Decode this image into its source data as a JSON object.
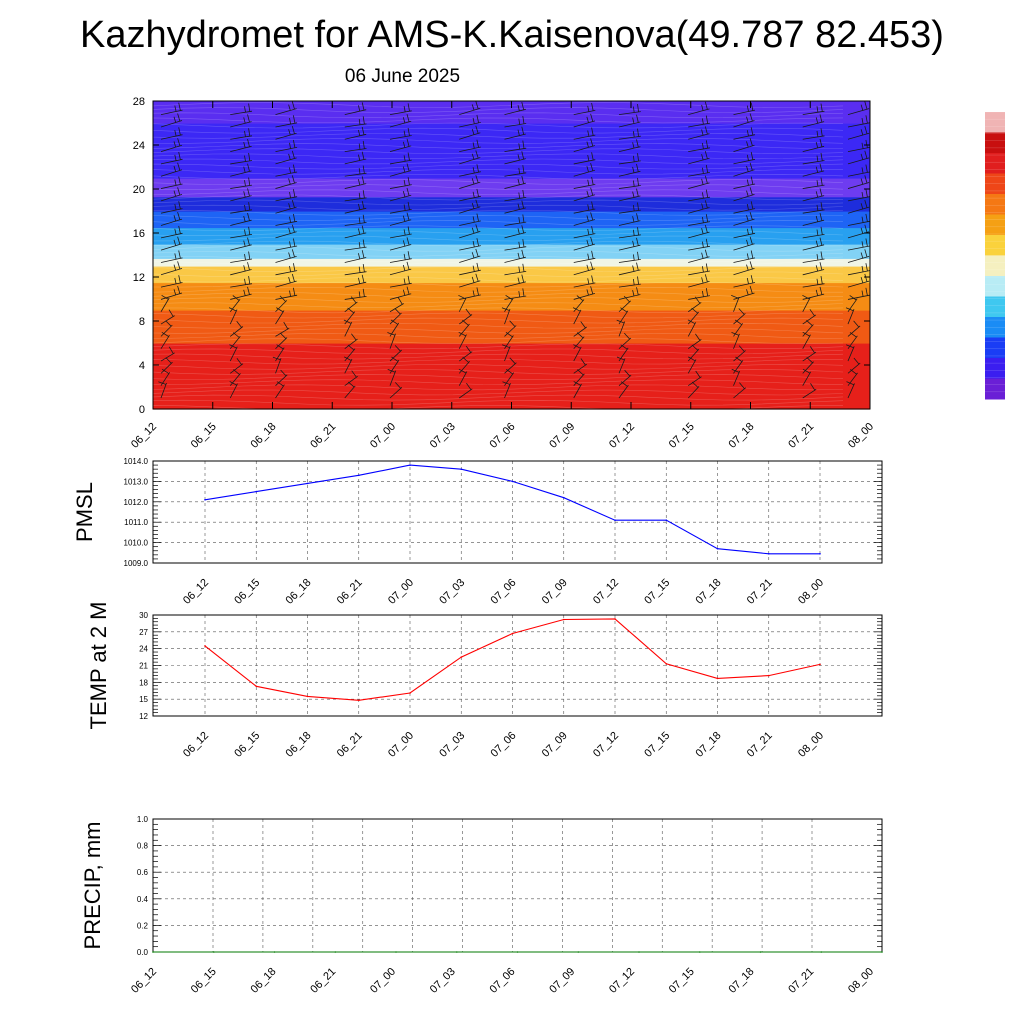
{
  "page": {
    "title": "Kazhydromet for AMS-K.Kaisenova(49.787 82.453)",
    "subtitle": "06 June 2025"
  },
  "chart_data": [
    {
      "type": "heatmap",
      "name": "vertical-cross-section",
      "x_tick_labels": [
        "06_12",
        "06_15",
        "06_18",
        "06_21",
        "07_00",
        "07_03",
        "07_06",
        "07_09",
        "07_12",
        "07_15",
        "07_18",
        "07_21",
        "08_00"
      ],
      "y_tick_labels": [
        "0",
        "4",
        "8",
        "12",
        "16",
        "20",
        "24",
        "28"
      ],
      "ylim": [
        0,
        28
      ],
      "colormap": [
        "#6a1fd6",
        "#3b1ef0",
        "#1a3df5",
        "#1a8cf5",
        "#3fc8f0",
        "#b8ecf5",
        "#f5f0c0",
        "#fad23c",
        "#f5a014",
        "#f57814",
        "#ee4618",
        "#e01e1e",
        "#c80f0f"
      ],
      "colorbar_top_color": "#f0b4b4",
      "bands": [
        {
          "from": 0,
          "to": 6,
          "color": "#e6201a"
        },
        {
          "from": 6,
          "to": 9,
          "color": "#f05a14"
        },
        {
          "from": 9,
          "to": 11.5,
          "color": "#f58c14"
        },
        {
          "from": 11.5,
          "to": 13,
          "color": "#fac846"
        },
        {
          "from": 13,
          "to": 13.7,
          "color": "#f0f5e6"
        },
        {
          "from": 13.7,
          "to": 15,
          "color": "#82d2f5"
        },
        {
          "from": 15,
          "to": 16.5,
          "color": "#28a0f0"
        },
        {
          "from": 16.5,
          "to": 18,
          "color": "#1e64f5"
        },
        {
          "from": 18,
          "to": 19.3,
          "color": "#1e2ddc"
        },
        {
          "from": 19.3,
          "to": 21,
          "color": "#6e3cf0"
        },
        {
          "from": 21,
          "to": 26,
          "color": "#3c28f5"
        },
        {
          "from": 26,
          "to": 28,
          "color": "#5a2ef0"
        }
      ]
    },
    {
      "type": "line",
      "name": "pmsl",
      "ylabel": "PMSL",
      "x": [
        "06_12",
        "06_15",
        "06_18",
        "06_21",
        "07_00",
        "07_03",
        "07_06",
        "07_09",
        "07_12",
        "07_15",
        "07_18",
        "07_21",
        "08_00"
      ],
      "values": [
        1012.1,
        1012.5,
        1012.9,
        1013.3,
        1013.8,
        1013.6,
        1013.0,
        1012.2,
        1011.1,
        1011.1,
        1009.7,
        1009.45,
        1009.45
      ],
      "ylim": [
        1009.0,
        1014.0
      ],
      "y_ticks": [
        "1009.0",
        "1010.0",
        "1011.0",
        "1012.0",
        "1013.0",
        "1014.0"
      ],
      "color": "#0000ff",
      "grid": true
    },
    {
      "type": "line",
      "name": "temp2m",
      "ylabel": "TEMP at 2 M",
      "x": [
        "06_12",
        "06_15",
        "06_18",
        "06_21",
        "07_00",
        "07_03",
        "07_06",
        "07_09",
        "07_12",
        "07_15",
        "07_18",
        "07_21",
        "08_00"
      ],
      "values": [
        24.5,
        17.3,
        15.5,
        14.8,
        16.1,
        22.5,
        26.7,
        29.2,
        29.3,
        21.3,
        18.7,
        19.2,
        21.2
      ],
      "ylim": [
        12,
        30
      ],
      "y_ticks": [
        "12",
        "15",
        "18",
        "21",
        "24",
        "27",
        "30"
      ],
      "color": "#ff0000",
      "grid": true
    },
    {
      "type": "line",
      "name": "precip",
      "ylabel": "PRECIP, mm",
      "x": [
        "06_12",
        "06_15",
        "06_18",
        "06_21",
        "07_00",
        "07_03",
        "07_06",
        "07_09",
        "07_12",
        "07_15",
        "07_18",
        "07_21",
        "08_00"
      ],
      "values": [
        0,
        0,
        0,
        0,
        0,
        0,
        0,
        0,
        0,
        0,
        0,
        0,
        0
      ],
      "ylim": [
        0.0,
        1.0
      ],
      "y_ticks": [
        "0.0",
        "0.2",
        "0.4",
        "0.6",
        "0.8",
        "1.0"
      ],
      "color": "#007a00",
      "grid": true
    }
  ]
}
